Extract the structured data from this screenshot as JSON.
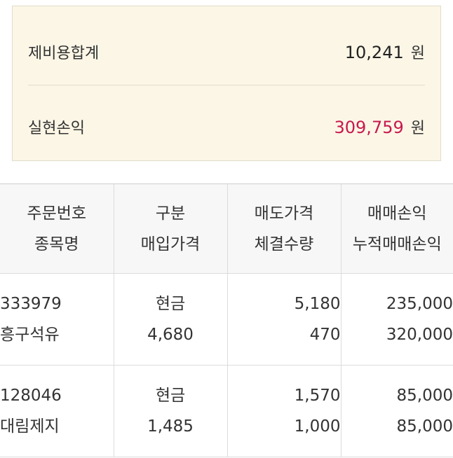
{
  "summary": {
    "fee_total_label": "제비용합계",
    "fee_total_value": "10,241",
    "fee_total_unit": "원",
    "realized_pl_label": "실현손익",
    "realized_pl_value": "309,759",
    "realized_pl_unit": "원"
  },
  "colors": {
    "summary_bg": "#fcf6e6",
    "profit_accent": "#c8194f",
    "header_bg": "#f7f7f7"
  },
  "table": {
    "headers": [
      [
        "주문번호",
        "종목명"
      ],
      [
        "구분",
        "매입가격"
      ],
      [
        "매도가격",
        "체결수량"
      ],
      [
        "매매손익",
        "누적매매손익"
      ]
    ],
    "rows": [
      {
        "order_no": "333979",
        "stock_name": "흥구석유",
        "type": "현금",
        "buy_price": "4,680",
        "sell_price": "5,180",
        "quantity": "470",
        "trade_pl": "235,000",
        "cum_pl": "320,000"
      },
      {
        "order_no": "128046",
        "stock_name": "대림제지",
        "type": "현금",
        "buy_price": "1,485",
        "sell_price": "1,570",
        "quantity": "1,000",
        "trade_pl": "85,000",
        "cum_pl": "85,000"
      }
    ]
  }
}
